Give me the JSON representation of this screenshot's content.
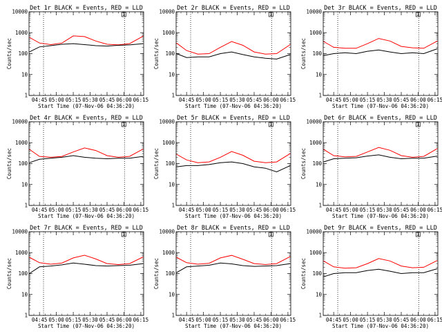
{
  "chart_data": {
    "type": "line",
    "series_names": [
      "Events",
      "LLD"
    ],
    "colors": {
      "Events": "#000000",
      "LLD": "#ff0000"
    },
    "x_tick_labels": [
      "04:45",
      "05:00",
      "05:15",
      "05:30",
      "05:45",
      "06:00",
      "06:15"
    ],
    "x_tick_minutes": [
      0,
      15,
      30,
      45,
      60,
      75,
      90
    ],
    "x_range_minutes": [
      -9.3,
      92.5
    ],
    "y_scale": "log",
    "y_range": [
      1,
      10000
    ],
    "y_tick_labels": [
      "1",
      "10",
      "100",
      "1000",
      "10000"
    ],
    "y_tick_values": [
      1,
      10,
      100,
      1000,
      10000
    ],
    "xlabel": "Start Time (07-Nov-06 04:36:20)",
    "ylabel": "Counts/sec",
    "dotted_lines_minutes": [
      3.6,
      75.5
    ],
    "panels": [
      {
        "title": "Det 1r BLACK = Events, RED = LLD",
        "marker": "1",
        "x": [
          -9,
          0,
          10,
          20,
          30,
          40,
          50,
          60,
          70,
          80,
          92
        ],
        "events": [
          120,
          210,
          240,
          280,
          300,
          270,
          240,
          230,
          250,
          260,
          300
        ],
        "lld": [
          600,
          320,
          270,
          320,
          700,
          650,
          400,
          280,
          260,
          300,
          680
        ]
      },
      {
        "title": "Det 2r BLACK = Events, RED = LLD",
        "marker": "1",
        "x": [
          -9,
          0,
          10,
          20,
          30,
          40,
          50,
          60,
          70,
          80,
          92
        ],
        "events": [
          100,
          65,
          70,
          70,
          100,
          120,
          90,
          70,
          60,
          55,
          90
        ],
        "lld": [
          320,
          140,
          95,
          100,
          200,
          380,
          250,
          120,
          95,
          100,
          270
        ]
      },
      {
        "title": "Det 3r BLACK = Events, RED = LLD",
        "marker": "1",
        "x": [
          -9,
          0,
          10,
          20,
          30,
          40,
          50,
          60,
          70,
          80,
          92
        ],
        "events": [
          80,
          100,
          110,
          100,
          130,
          150,
          120,
          100,
          110,
          100,
          170
        ],
        "lld": [
          380,
          200,
          180,
          180,
          300,
          530,
          400,
          220,
          190,
          180,
          400
        ]
      },
      {
        "title": "Det 4r BLACK = Events, RED = LLD",
        "marker": "1",
        "x": [
          -9,
          0,
          10,
          20,
          30,
          40,
          50,
          60,
          70,
          80,
          92
        ],
        "events": [
          110,
          160,
          180,
          200,
          240,
          200,
          180,
          170,
          180,
          180,
          220
        ],
        "lld": [
          480,
          220,
          200,
          220,
          360,
          560,
          420,
          240,
          200,
          220,
          500
        ]
      },
      {
        "title": "Det 5r BLACK = Events, RED = LLD",
        "marker": "1",
        "x": [
          -9,
          0,
          10,
          20,
          30,
          40,
          50,
          60,
          70,
          80,
          92
        ],
        "events": [
          70,
          80,
          80,
          90,
          110,
          120,
          100,
          70,
          60,
          40,
          80
        ],
        "lld": [
          280,
          150,
          110,
          120,
          200,
          380,
          250,
          130,
          110,
          120,
          300
        ]
      },
      {
        "title": "Det 6r BLACK = Events, RED = LLD",
        "marker": "1",
        "x": [
          -9,
          0,
          10,
          20,
          30,
          40,
          50,
          60,
          70,
          80,
          92
        ],
        "events": [
          120,
          170,
          180,
          190,
          230,
          260,
          200,
          170,
          180,
          180,
          230
        ],
        "lld": [
          480,
          240,
          210,
          220,
          360,
          590,
          430,
          240,
          200,
          220,
          520
        ]
      },
      {
        "title": "Det 7r BLACK = Events, RED = LLD",
        "marker": "1",
        "x": [
          -9,
          0,
          10,
          20,
          30,
          40,
          50,
          60,
          70,
          80,
          92
        ],
        "events": [
          100,
          210,
          230,
          260,
          320,
          280,
          240,
          230,
          240,
          250,
          300
        ],
        "lld": [
          600,
          330,
          280,
          320,
          560,
          750,
          500,
          300,
          270,
          300,
          620
        ]
      },
      {
        "title": "Det 8r BLACK = Events, RED = LLD",
        "marker": "1",
        "x": [
          -9,
          0,
          10,
          20,
          30,
          40,
          50,
          60,
          70,
          80,
          92
        ],
        "events": [
          110,
          210,
          230,
          250,
          320,
          290,
          240,
          220,
          230,
          240,
          300
        ],
        "lld": [
          600,
          330,
          280,
          310,
          560,
          740,
          480,
          300,
          270,
          300,
          650
        ]
      },
      {
        "title": "Det 9r BLACK = Events, RED = LLD",
        "marker": "1",
        "x": [
          -9,
          0,
          10,
          20,
          30,
          40,
          50,
          60,
          70,
          80,
          92
        ],
        "events": [
          70,
          100,
          110,
          110,
          140,
          160,
          130,
          100,
          110,
          110,
          170
        ],
        "lld": [
          400,
          210,
          180,
          190,
          300,
          520,
          400,
          230,
          190,
          200,
          420
        ]
      }
    ]
  }
}
